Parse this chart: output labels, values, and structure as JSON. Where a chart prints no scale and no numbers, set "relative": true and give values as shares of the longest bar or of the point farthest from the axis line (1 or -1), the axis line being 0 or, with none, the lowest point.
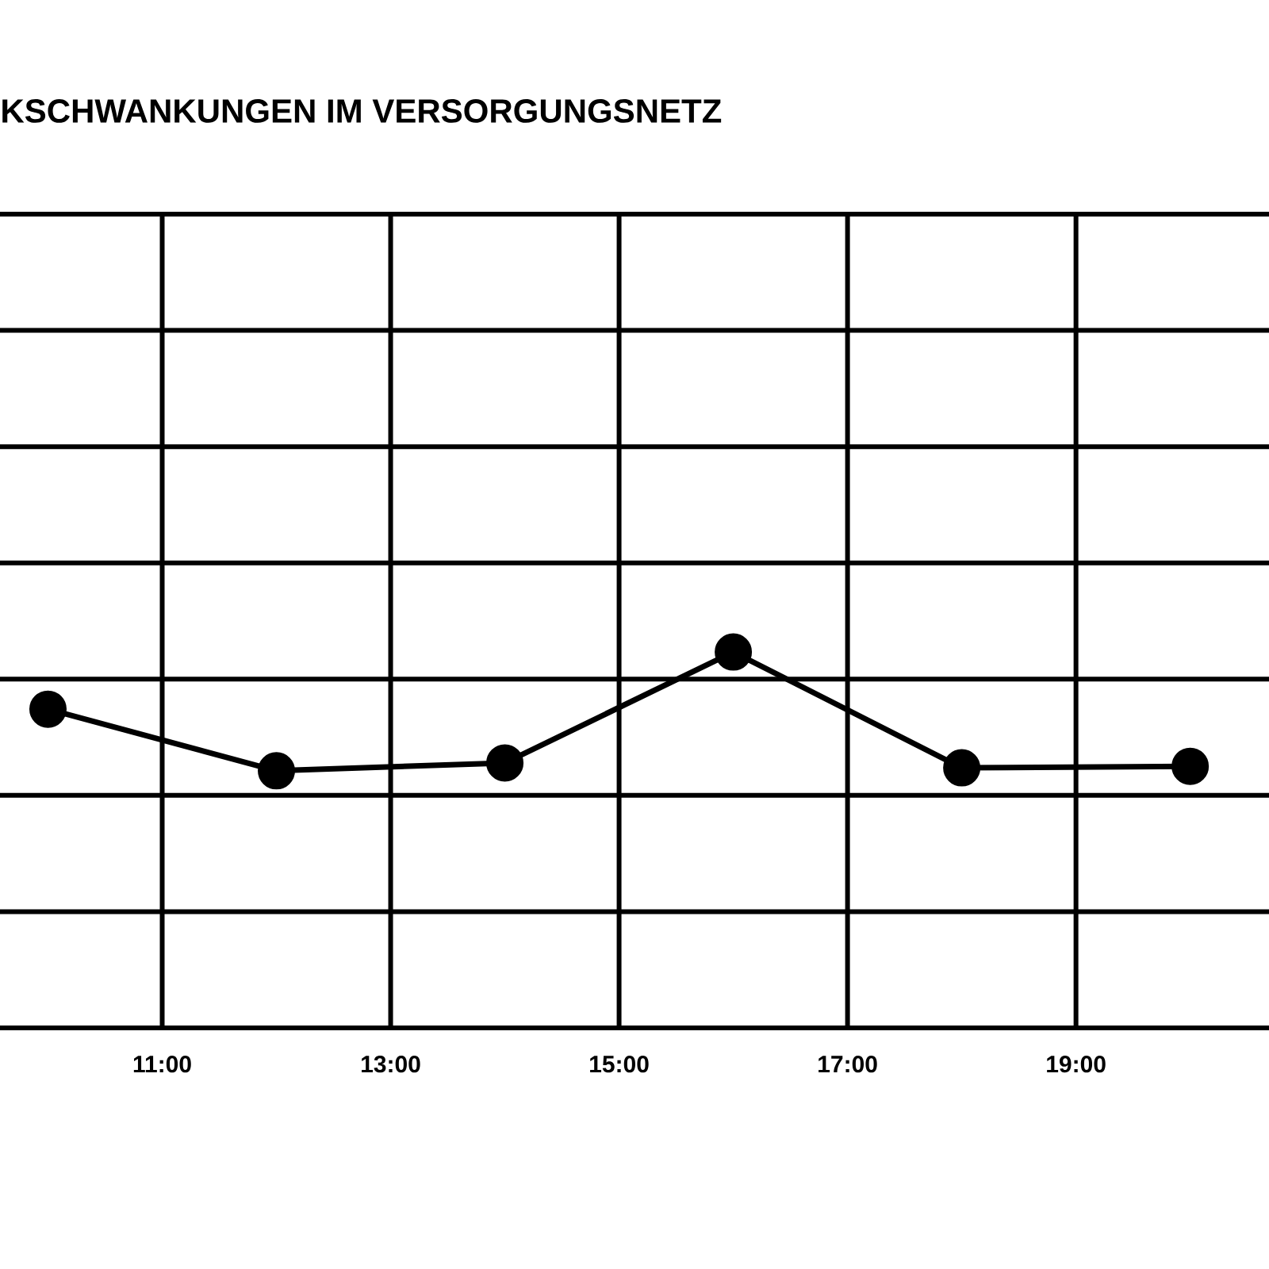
{
  "chart_data": {
    "type": "line",
    "title": "KSCHWANKUNGEN IM VERSORGUNGSNETZ",
    "relative": true,
    "x": [
      10,
      12,
      14,
      16,
      18,
      20
    ],
    "series": [
      {
        "color": "#000000",
        "values": [
          0.848,
          0.684,
          0.705,
          1,
          0.692,
          0.696
        ]
      }
    ],
    "xlim": [
      9.58,
      20.69
    ],
    "xticks": [
      {
        "value": 11,
        "label": "11:00"
      },
      {
        "value": 13,
        "label": "13:00"
      },
      {
        "value": 15,
        "label": "15:00"
      },
      {
        "value": 17,
        "label": "17:00"
      },
      {
        "value": 19,
        "label": "19:00"
      }
    ],
    "grid": true,
    "marker": "circle",
    "line_style": "solid"
  }
}
